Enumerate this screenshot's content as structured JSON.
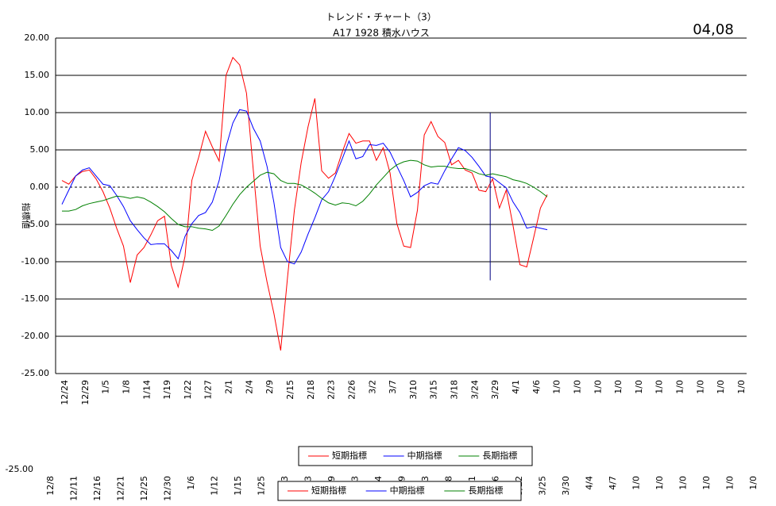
{
  "chart_data": {
    "type": "line",
    "title": "トレンド・チャート（3）",
    "subtitle": "A17  1928 積水ハウス",
    "corner_label": "04,08",
    "y_axis_label": "指標値",
    "ylim": [
      -25,
      20
    ],
    "yticks": [
      {
        "value": 20,
        "label": "20.00"
      },
      {
        "value": 15,
        "label": "15.00"
      },
      {
        "value": 10,
        "label": "10.00"
      },
      {
        "value": 5,
        "label": "5.00"
      },
      {
        "value": 0,
        "label": "0.00"
      },
      {
        "value": -5,
        "label": "-5.00"
      },
      {
        "value": -10,
        "label": "-10.00"
      },
      {
        "value": -15,
        "label": "-15.00"
      },
      {
        "value": -20,
        "label": "-20.00"
      },
      {
        "value": -25,
        "label": "-25.00"
      }
    ],
    "grid": true,
    "legend": "bottom",
    "categories": [
      "12/24",
      null,
      null,
      "12/29",
      null,
      null,
      "1/5",
      null,
      null,
      "1/8",
      null,
      null,
      "1/14",
      null,
      null,
      "1/19",
      null,
      null,
      "1/22",
      null,
      null,
      "1/27",
      null,
      null,
      "2/1",
      null,
      null,
      "2/4",
      null,
      null,
      "2/9",
      null,
      null,
      "2/15",
      null,
      null,
      "2/18",
      null,
      null,
      "2/23",
      null,
      null,
      "2/26",
      null,
      null,
      "3/2",
      null,
      null,
      "3/7",
      null,
      null,
      "3/10",
      null,
      null,
      "3/15",
      null,
      null,
      "3/18",
      null,
      null,
      "3/24",
      null,
      null,
      "3/29",
      null,
      null,
      "4/1",
      null,
      null,
      "4/6",
      null,
      null,
      "1/0",
      null,
      null,
      "1/0",
      null,
      null,
      "1/0",
      null,
      null,
      "1/0",
      null,
      null,
      "1/0",
      null,
      null,
      "1/0",
      null,
      null,
      "1/0",
      null,
      null,
      "1/0",
      null,
      null,
      "1/0",
      null,
      null,
      "1/0",
      null,
      null
    ],
    "series": [
      {
        "name": "短期指標",
        "color": "#ff0000",
        "values": [
          0.9,
          0.4,
          1.5,
          2.1,
          2.3,
          1.1,
          -0.6,
          -2.8,
          -5.5,
          -7.9,
          -12.8,
          -9.1,
          -8.1,
          -6.4,
          -4.5,
          -3.9,
          -10.5,
          -13.4,
          -9.3,
          0.9,
          4.0,
          7.5,
          5.4,
          3.5,
          15.0,
          17.4,
          16.4,
          12.6,
          2.2,
          -7.9,
          -12.7,
          -16.9,
          -21.9,
          -12.1,
          -3.1,
          3.3,
          8.1,
          11.9,
          2.2,
          1.2,
          1.9,
          4.7,
          7.2,
          5.9,
          6.2,
          6.2,
          3.6,
          5.3,
          1.9,
          -4.9,
          -7.9,
          -8.1,
          -3.1,
          7.0,
          8.8,
          6.8,
          6.0,
          3.0,
          3.6,
          2.3,
          1.9,
          -0.4,
          -0.6,
          1.1,
          -2.8,
          -0.4,
          -5.2,
          -10.4,
          -10.7,
          -6.8,
          -2.8,
          -1.0,
          null,
          null,
          null,
          null,
          null,
          null,
          null,
          null,
          null,
          null,
          null,
          null,
          null,
          null,
          null,
          null,
          null,
          null,
          null,
          null,
          null,
          null,
          null,
          null,
          null,
          null,
          null,
          null,
          null,
          null
        ]
      },
      {
        "name": "中期指標",
        "color": "#0000ff",
        "values": [
          -2.3,
          -0.4,
          1.5,
          2.3,
          2.6,
          1.5,
          0.4,
          0.2,
          -1.1,
          -2.6,
          -4.5,
          -5.7,
          -6.8,
          -7.7,
          -7.6,
          -7.6,
          -8.5,
          -9.6,
          -6.6,
          -4.9,
          -3.8,
          -3.4,
          -2.0,
          0.9,
          5.4,
          8.6,
          10.4,
          10.2,
          7.9,
          6.2,
          2.8,
          -2.0,
          -8.1,
          -10.0,
          -10.3,
          -8.7,
          -6.3,
          -4.1,
          -1.7,
          -0.6,
          1.5,
          3.8,
          6.2,
          3.8,
          4.1,
          5.7,
          5.6,
          5.9,
          4.7,
          2.8,
          0.9,
          -1.3,
          -0.7,
          0.2,
          0.6,
          0.4,
          2.2,
          3.8,
          5.3,
          4.9,
          4.0,
          2.8,
          1.5,
          1.3,
          0.6,
          -0.1,
          -2.0,
          -3.4,
          -5.5,
          -5.3,
          -5.5,
          -5.7,
          null,
          null,
          null,
          null,
          null,
          null,
          null,
          null,
          null,
          null,
          null,
          null,
          null,
          null,
          null,
          null,
          null,
          null,
          null,
          null,
          null,
          null,
          null,
          null,
          null,
          null,
          null,
          null,
          null,
          null
        ]
      },
      {
        "name": "長期指標",
        "color": "#008000",
        "values": [
          -3.2,
          -3.2,
          -3.0,
          -2.5,
          -2.2,
          -2.0,
          -1.8,
          -1.5,
          -1.2,
          -1.3,
          -1.5,
          -1.3,
          -1.5,
          -2.0,
          -2.6,
          -3.3,
          -4.2,
          -5.0,
          -5.3,
          -5.3,
          -5.5,
          -5.6,
          -5.8,
          -5.2,
          -3.8,
          -2.3,
          -1.0,
          0.0,
          0.8,
          1.6,
          2.0,
          1.8,
          0.9,
          0.5,
          0.5,
          0.3,
          -0.2,
          -0.8,
          -1.5,
          -2.1,
          -2.4,
          -2.1,
          -2.2,
          -2.5,
          -1.9,
          -0.9,
          0.3,
          1.3,
          2.3,
          3.0,
          3.4,
          3.6,
          3.5,
          3.0,
          2.7,
          2.8,
          2.8,
          2.6,
          2.5,
          2.5,
          2.2,
          1.8,
          1.6,
          1.8,
          1.6,
          1.4,
          1.0,
          0.8,
          0.5,
          0.0,
          -0.6,
          -1.3,
          null,
          null,
          null,
          null,
          null,
          null,
          null,
          null,
          null,
          null,
          null,
          null,
          null,
          null,
          null,
          null,
          null,
          null,
          null,
          null,
          null,
          null,
          null,
          null,
          null,
          null,
          null,
          null,
          null,
          null
        ]
      }
    ],
    "marker_line": {
      "index": 63,
      "from": 10,
      "to": -12.5,
      "color": "#000080"
    }
  },
  "overlapped_chart": {
    "ytick_label": "-25.00",
    "x_labels": [
      "12/8",
      "12/11",
      "12/16",
      "12/21",
      "12/25",
      "12/30",
      "1/6",
      "1/12",
      "1/15",
      "1/25",
      "3",
      "3",
      "9",
      "3",
      "4",
      "9",
      "3",
      "8",
      "1",
      "3/16",
      "3/22",
      "3/25",
      "3/30",
      "4/4",
      "4/7",
      "1/0",
      "1/0",
      "1/0",
      "1/0",
      "1/0",
      "1/0"
    ],
    "legend": [
      "短期指標",
      "中期指標",
      "長期指標"
    ]
  }
}
